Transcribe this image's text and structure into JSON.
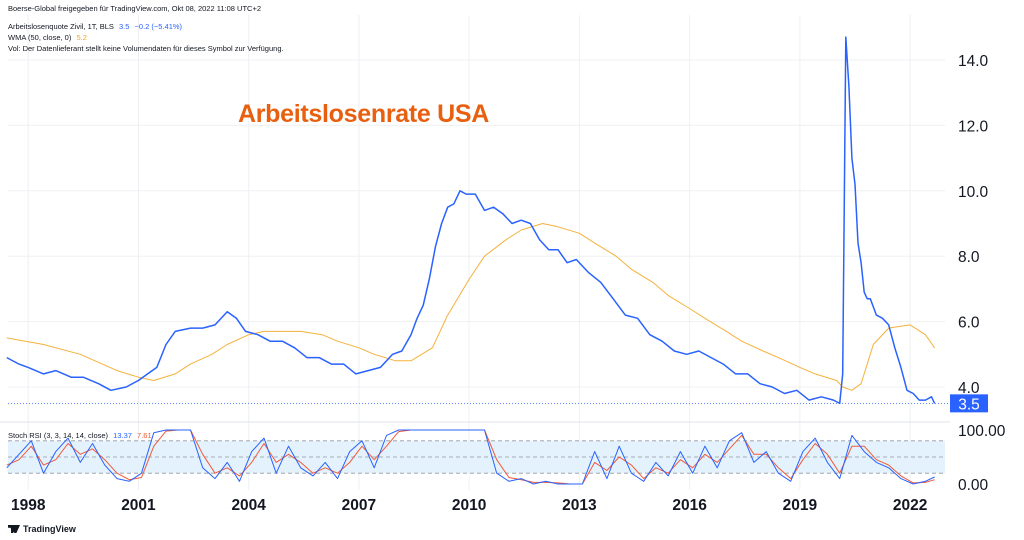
{
  "header": {
    "share_text": "Boerse-Global freigegeben für TradingView.com, Okt 08, 2022 11:08 UTC+2",
    "symbol_text": "Arbeitslosenquote Zivil, 1T, BLS",
    "symbol_value": "3.5",
    "symbol_change": "−0.2 (−5.41%)",
    "wma_text": "WMA (50, close, 0)",
    "wma_value": "5.2",
    "vol_text": "Vol: Der Datenlieferant stellt keine Volumendaten für dieses Symbol zur Verfügung.",
    "chart_title": "Arbeitslosenrate USA"
  },
  "rsi_header": {
    "label": "Stoch RSI (3, 3, 14, 14, close)",
    "k_value": "13.37",
    "d_value": "7.61"
  },
  "footer": {
    "brand": "TradingView"
  },
  "colors": {
    "main_line": "#2962ff",
    "wma_line": "#f5b13c",
    "title": "#e8600f",
    "rsi_d": "#f25a3a",
    "rsi_band": "#e3f2fd",
    "price_label_bg": "#2962ff"
  },
  "chart_data": [
    {
      "type": "line",
      "title": "Arbeitslosenrate USA",
      "xlabel": "",
      "ylabel": "",
      "x_ticks": [
        "1998",
        "2001",
        "2004",
        "2007",
        "2010",
        "2013",
        "2016",
        "2019",
        "2022"
      ],
      "y_ticks": [
        "4.0",
        "6.0",
        "8.0",
        "10.0",
        "12.0",
        "14.0"
      ],
      "ylim": [
        3.0,
        15.0
      ],
      "last_value_label": "3.5",
      "grid": true,
      "series": [
        {
          "name": "Arbeitslosenquote Zivil",
          "x": [
            "1997-06",
            "1997-10",
            "1998-01",
            "1998-06",
            "1998-10",
            "1999-03",
            "1999-07",
            "1999-12",
            "2000-04",
            "2000-09",
            "2001-01",
            "2001-04",
            "2001-07",
            "2001-10",
            "2002-01",
            "2002-06",
            "2002-10",
            "2003-02",
            "2003-06",
            "2003-09",
            "2003-12",
            "2004-04",
            "2004-08",
            "2004-12",
            "2005-04",
            "2005-08",
            "2005-12",
            "2006-04",
            "2006-08",
            "2006-12",
            "2007-04",
            "2007-08",
            "2007-12",
            "2008-03",
            "2008-06",
            "2008-08",
            "2008-10",
            "2008-12",
            "2009-02",
            "2009-04",
            "2009-06",
            "2009-08",
            "2009-10",
            "2009-12",
            "2010-03",
            "2010-06",
            "2010-09",
            "2010-12",
            "2011-03",
            "2011-06",
            "2011-09",
            "2011-12",
            "2012-03",
            "2012-06",
            "2012-09",
            "2012-12",
            "2013-04",
            "2013-08",
            "2013-12",
            "2014-04",
            "2014-08",
            "2014-12",
            "2015-04",
            "2015-08",
            "2015-12",
            "2016-04",
            "2016-08",
            "2016-12",
            "2017-04",
            "2017-08",
            "2017-12",
            "2018-04",
            "2018-08",
            "2018-12",
            "2019-04",
            "2019-08",
            "2019-12",
            "2020-02",
            "2020-03",
            "2020-04",
            "2020-05",
            "2020-06",
            "2020-07",
            "2020-08",
            "2020-09",
            "2020-10",
            "2020-11",
            "2020-12",
            "2021-02",
            "2021-04",
            "2021-06",
            "2021-08",
            "2021-10",
            "2021-12",
            "2022-02",
            "2022-04",
            "2022-06",
            "2022-08",
            "2022-09"
          ],
          "values": [
            4.9,
            4.7,
            4.6,
            4.4,
            4.5,
            4.3,
            4.3,
            4.1,
            3.9,
            4.0,
            4.2,
            4.4,
            4.6,
            5.3,
            5.7,
            5.8,
            5.8,
            5.9,
            6.3,
            6.1,
            5.7,
            5.6,
            5.4,
            5.4,
            5.2,
            4.9,
            4.9,
            4.7,
            4.7,
            4.4,
            4.5,
            4.6,
            5.0,
            5.1,
            5.6,
            6.1,
            6.5,
            7.3,
            8.3,
            9.0,
            9.5,
            9.6,
            10.0,
            9.9,
            9.9,
            9.4,
            9.5,
            9.3,
            9.0,
            9.1,
            9.0,
            8.5,
            8.2,
            8.2,
            7.8,
            7.9,
            7.5,
            7.2,
            6.7,
            6.2,
            6.1,
            5.6,
            5.4,
            5.1,
            5.0,
            5.1,
            4.9,
            4.7,
            4.4,
            4.4,
            4.1,
            4.0,
            3.8,
            3.9,
            3.6,
            3.7,
            3.6,
            3.5,
            4.4,
            14.7,
            13.2,
            11.0,
            10.2,
            8.4,
            7.8,
            6.9,
            6.7,
            6.7,
            6.2,
            6.1,
            5.9,
            5.2,
            4.6,
            3.9,
            3.8,
            3.6,
            3.6,
            3.7,
            3.5
          ]
        },
        {
          "name": "WMA (50, close, 0)",
          "x": [
            "1997-06",
            "1998-06",
            "1999-06",
            "2000-06",
            "2001-01",
            "2001-06",
            "2002-01",
            "2002-06",
            "2003-01",
            "2003-06",
            "2004-01",
            "2004-06",
            "2005-01",
            "2005-06",
            "2006-01",
            "2006-06",
            "2007-01",
            "2007-06",
            "2008-01",
            "2008-06",
            "2009-01",
            "2009-06",
            "2010-01",
            "2010-06",
            "2011-01",
            "2011-06",
            "2012-01",
            "2012-06",
            "2013-01",
            "2013-06",
            "2014-01",
            "2014-06",
            "2015-01",
            "2015-06",
            "2016-01",
            "2016-06",
            "2017-01",
            "2017-06",
            "2018-01",
            "2018-06",
            "2019-01",
            "2019-06",
            "2020-01",
            "2020-03",
            "2020-06",
            "2020-09",
            "2021-01",
            "2021-06",
            "2022-01",
            "2022-06",
            "2022-09"
          ],
          "values": [
            5.5,
            5.3,
            5.0,
            4.5,
            4.3,
            4.2,
            4.4,
            4.7,
            5.0,
            5.3,
            5.6,
            5.7,
            5.7,
            5.7,
            5.6,
            5.4,
            5.2,
            5.0,
            4.8,
            4.8,
            5.2,
            6.2,
            7.3,
            8.0,
            8.5,
            8.8,
            9.0,
            8.9,
            8.7,
            8.4,
            8.0,
            7.6,
            7.2,
            6.8,
            6.4,
            6.1,
            5.7,
            5.4,
            5.1,
            4.9,
            4.6,
            4.4,
            4.2,
            4.0,
            3.9,
            4.1,
            5.3,
            5.8,
            5.9,
            5.6,
            5.2
          ]
        }
      ]
    },
    {
      "type": "line",
      "title": "Stoch RSI (3, 3, 14, 14, close)",
      "y_ticks": [
        "100.00",
        "0.00"
      ],
      "ylim": [
        0,
        100
      ],
      "bands": [
        20,
        50,
        80
      ],
      "series": [
        {
          "name": "K",
          "x": [
            "1997-06",
            "1997-10",
            "1998-02",
            "1998-06",
            "1998-10",
            "1999-02",
            "1999-06",
            "1999-10",
            "2000-02",
            "2000-06",
            "2000-10",
            "2001-02",
            "2001-06",
            "2001-10",
            "2002-02",
            "2002-06",
            "2002-10",
            "2003-02",
            "2003-06",
            "2003-10",
            "2004-02",
            "2004-06",
            "2004-10",
            "2005-02",
            "2005-06",
            "2005-10",
            "2006-02",
            "2006-06",
            "2006-10",
            "2007-02",
            "2007-06",
            "2007-10",
            "2008-02",
            "2008-06",
            "2008-10",
            "2009-02",
            "2009-06",
            "2009-10",
            "2010-02",
            "2010-06",
            "2010-10",
            "2011-02",
            "2011-06",
            "2011-10",
            "2012-02",
            "2012-06",
            "2012-10",
            "2013-02",
            "2013-06",
            "2013-10",
            "2014-02",
            "2014-06",
            "2014-10",
            "2015-02",
            "2015-06",
            "2015-10",
            "2016-02",
            "2016-06",
            "2016-10",
            "2017-02",
            "2017-06",
            "2017-10",
            "2018-02",
            "2018-06",
            "2018-10",
            "2019-02",
            "2019-06",
            "2019-10",
            "2020-02",
            "2020-06",
            "2020-10",
            "2021-02",
            "2021-06",
            "2021-10",
            "2022-02",
            "2022-06",
            "2022-09"
          ],
          "values": [
            30,
            55,
            80,
            20,
            60,
            85,
            40,
            75,
            35,
            10,
            5,
            20,
            95,
            100,
            100,
            100,
            30,
            10,
            40,
            5,
            60,
            85,
            20,
            70,
            30,
            15,
            40,
            10,
            60,
            80,
            30,
            90,
            100,
            100,
            100,
            100,
            100,
            100,
            100,
            100,
            20,
            5,
            10,
            0,
            5,
            0,
            0,
            0,
            60,
            10,
            70,
            20,
            5,
            40,
            15,
            60,
            20,
            70,
            30,
            80,
            95,
            40,
            60,
            20,
            5,
            60,
            85,
            40,
            10,
            90,
            60,
            40,
            30,
            10,
            0,
            5,
            13
          ]
        },
        {
          "name": "D",
          "x": [
            "1997-06",
            "1997-10",
            "1998-02",
            "1998-06",
            "1998-10",
            "1999-02",
            "1999-06",
            "1999-10",
            "2000-02",
            "2000-06",
            "2000-10",
            "2001-02",
            "2001-06",
            "2001-10",
            "2002-02",
            "2002-06",
            "2002-10",
            "2003-02",
            "2003-06",
            "2003-10",
            "2004-02",
            "2004-06",
            "2004-10",
            "2005-02",
            "2005-06",
            "2005-10",
            "2006-02",
            "2006-06",
            "2006-10",
            "2007-02",
            "2007-06",
            "2007-10",
            "2008-02",
            "2008-06",
            "2008-10",
            "2009-02",
            "2009-06",
            "2009-10",
            "2010-02",
            "2010-06",
            "2010-10",
            "2011-02",
            "2011-06",
            "2011-10",
            "2012-02",
            "2012-06",
            "2012-10",
            "2013-02",
            "2013-06",
            "2013-10",
            "2014-02",
            "2014-06",
            "2014-10",
            "2015-02",
            "2015-06",
            "2015-10",
            "2016-02",
            "2016-06",
            "2016-10",
            "2017-02",
            "2017-06",
            "2017-10",
            "2018-02",
            "2018-06",
            "2018-10",
            "2019-02",
            "2019-06",
            "2019-10",
            "2020-02",
            "2020-06",
            "2020-10",
            "2021-02",
            "2021-06",
            "2021-10",
            "2022-02",
            "2022-06",
            "2022-09"
          ],
          "values": [
            35,
            45,
            70,
            35,
            45,
            75,
            55,
            65,
            45,
            20,
            8,
            12,
            70,
            98,
            100,
            100,
            55,
            20,
            30,
            15,
            40,
            75,
            40,
            55,
            40,
            20,
            30,
            20,
            40,
            70,
            45,
            70,
            97,
            100,
            100,
            100,
            100,
            100,
            100,
            100,
            45,
            12,
            8,
            3,
            3,
            2,
            0,
            0,
            40,
            25,
            50,
            35,
            10,
            30,
            20,
            45,
            30,
            55,
            40,
            65,
            90,
            55,
            55,
            30,
            10,
            45,
            75,
            55,
            20,
            70,
            70,
            45,
            35,
            15,
            2,
            3,
            8
          ]
        }
      ]
    }
  ]
}
